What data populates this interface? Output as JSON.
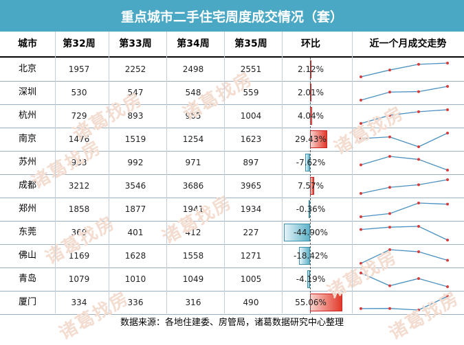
{
  "title": "重点城市二手住宅周度成交情况（套）",
  "headers": [
    "城市",
    "第32周",
    "第33周",
    "第34周",
    "第35周",
    "环比",
    "近一个月成交走势"
  ],
  "footer": "数据来源：各地住建委、房管局，诸葛数据研究中心整理",
  "watermark": "诸葛找房",
  "colors": {
    "header_bg": "#4aa8c4",
    "positive": "#e23a2a",
    "negative": "#5fb3c9",
    "spark_line": "#4a90c0",
    "spark_dot": "#d93a3a"
  },
  "chart_data": {
    "type": "table",
    "columns": [
      "城市",
      "第32周",
      "第33周",
      "第34周",
      "第35周",
      "环比"
    ],
    "rows": [
      {
        "city": "北京",
        "weeks": [
          1957,
          2252,
          2498,
          2551
        ],
        "change": 2.12,
        "change_label": "2.12%"
      },
      {
        "city": "深圳",
        "weeks": [
          530,
          547,
          548,
          559
        ],
        "change": 2.01,
        "change_label": "2.01%"
      },
      {
        "city": "杭州",
        "weeks": [
          729,
          893,
          965,
          1004
        ],
        "change": 4.04,
        "change_label": "4.04%"
      },
      {
        "city": "南京",
        "weeks": [
          1476,
          1519,
          1254,
          1623
        ],
        "change": 29.43,
        "change_label": "29.43%"
      },
      {
        "city": "苏州",
        "weeks": [
          933,
          992,
          971,
          897
        ],
        "change": -7.62,
        "change_label": "-7.62%"
      },
      {
        "city": "成都",
        "weeks": [
          3212,
          3546,
          3686,
          3965
        ],
        "change": 7.57,
        "change_label": "7.57%"
      },
      {
        "city": "郑州",
        "weeks": [
          1858,
          1877,
          1941,
          1934
        ],
        "change": -0.36,
        "change_label": "-0.36%"
      },
      {
        "city": "东莞",
        "weeks": [
          369,
          401,
          412,
          227
        ],
        "change": -44.9,
        "change_label": "-44.90%"
      },
      {
        "city": "佛山",
        "weeks": [
          1169,
          1628,
          1558,
          1271
        ],
        "change": -18.42,
        "change_label": "-18.42%"
      },
      {
        "city": "青岛",
        "weeks": [
          1079,
          1010,
          1049,
          1005
        ],
        "change": -4.19,
        "change_label": "-4.19%"
      },
      {
        "city": "厦门",
        "weeks": [
          334,
          336,
          316,
          490
        ],
        "change": 55.06,
        "change_label": "55.06%"
      }
    ]
  }
}
